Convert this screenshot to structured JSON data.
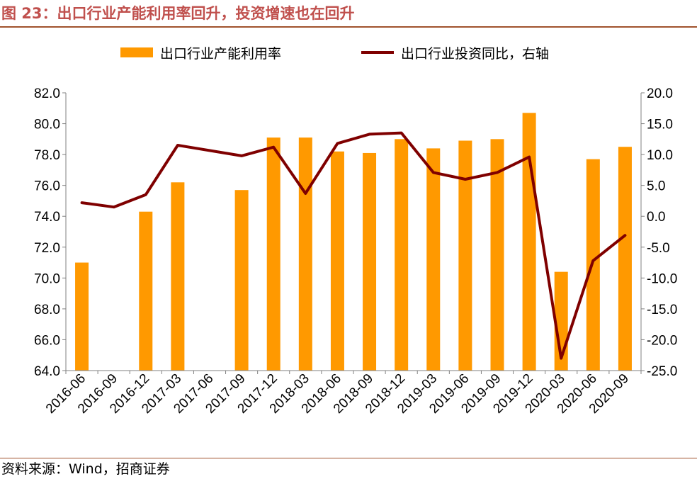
{
  "header": {
    "title": "图 23：出口行业产能利用率回升，投资增速也在回升"
  },
  "footer": {
    "source": "资料来源：Wind，招商证券"
  },
  "colors": {
    "bar": "#FF9900",
    "line": "#7F0000",
    "axis": "#808080",
    "accent": "#C0504D"
  },
  "chart_data": {
    "type": "bar+line",
    "categories": [
      "2016-06",
      "2016-09",
      "2016-12",
      "2017-03",
      "2017-06",
      "2017-09",
      "2017-12",
      "2018-03",
      "2018-06",
      "2018-09",
      "2018-12",
      "2019-03",
      "2019-06",
      "2019-09",
      "2019-12",
      "2020-03",
      "2020-06",
      "2020-09"
    ],
    "series": [
      {
        "name": "出口行业产能利用率",
        "type": "bar",
        "axis": "left",
        "values": [
          71.0,
          null,
          74.3,
          76.2,
          null,
          75.7,
          79.1,
          79.1,
          78.2,
          78.1,
          79.0,
          78.4,
          78.9,
          79.0,
          80.7,
          70.4,
          77.7,
          78.5
        ]
      },
      {
        "name": "出口行业投资同比，右轴",
        "type": "line",
        "axis": "right",
        "values": [
          2.2,
          1.5,
          3.5,
          11.5,
          null,
          9.8,
          11.2,
          3.7,
          11.8,
          13.3,
          13.5,
          7.1,
          6.0,
          7.1,
          9.6,
          -23.0,
          -7.2,
          -3.1
        ]
      }
    ],
    "y_left": {
      "min": 64.0,
      "max": 82.0,
      "step": 2.0,
      "ticks": [
        "64.0",
        "66.0",
        "68.0",
        "70.0",
        "72.0",
        "74.0",
        "76.0",
        "78.0",
        "80.0",
        "82.0"
      ]
    },
    "y_right": {
      "min": -25.0,
      "max": 20.0,
      "step": 5.0,
      "ticks": [
        "-25.0",
        "-20.0",
        "-15.0",
        "-10.0",
        "-5.0",
        "0.0",
        "5.0",
        "10.0",
        "15.0",
        "20.0"
      ]
    },
    "legend_position": "top-center",
    "grid": false
  }
}
